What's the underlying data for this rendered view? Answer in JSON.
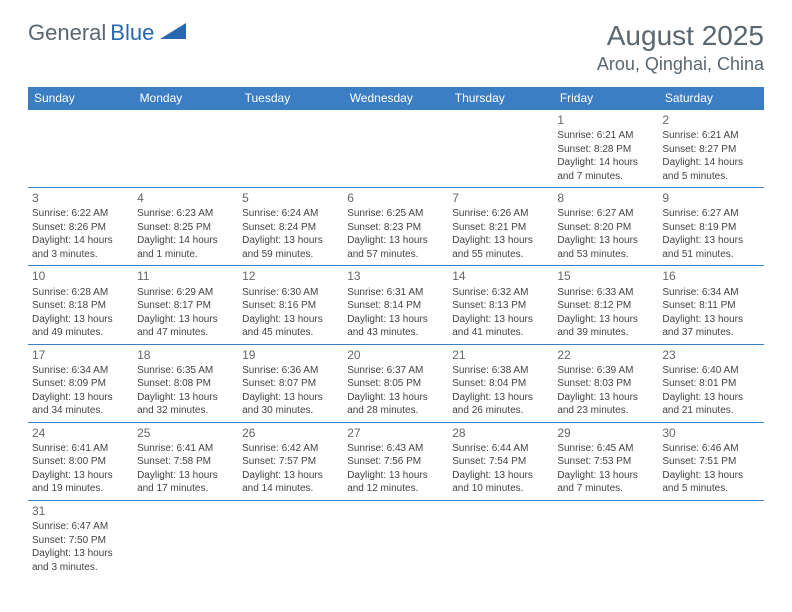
{
  "logo": {
    "text_dark": "General",
    "text_blue": "Blue"
  },
  "title": "August 2025",
  "location": "Arou, Qinghai, China",
  "colors": {
    "header_bg": "#3b7ec4",
    "header_text": "#ffffff",
    "border": "#3b7ec4",
    "text": "#444444",
    "title_text": "#5a6670",
    "logo_blue": "#2968b0"
  },
  "weekdays": [
    "Sunday",
    "Monday",
    "Tuesday",
    "Wednesday",
    "Thursday",
    "Friday",
    "Saturday"
  ],
  "cells": [
    [
      null,
      null,
      null,
      null,
      null,
      {
        "day": "1",
        "sunrise": "Sunrise: 6:21 AM",
        "sunset": "Sunset: 8:28 PM",
        "daylight": "Daylight: 14 hours and 7 minutes."
      },
      {
        "day": "2",
        "sunrise": "Sunrise: 6:21 AM",
        "sunset": "Sunset: 8:27 PM",
        "daylight": "Daylight: 14 hours and 5 minutes."
      }
    ],
    [
      {
        "day": "3",
        "sunrise": "Sunrise: 6:22 AM",
        "sunset": "Sunset: 8:26 PM",
        "daylight": "Daylight: 14 hours and 3 minutes."
      },
      {
        "day": "4",
        "sunrise": "Sunrise: 6:23 AM",
        "sunset": "Sunset: 8:25 PM",
        "daylight": "Daylight: 14 hours and 1 minute."
      },
      {
        "day": "5",
        "sunrise": "Sunrise: 6:24 AM",
        "sunset": "Sunset: 8:24 PM",
        "daylight": "Daylight: 13 hours and 59 minutes."
      },
      {
        "day": "6",
        "sunrise": "Sunrise: 6:25 AM",
        "sunset": "Sunset: 8:23 PM",
        "daylight": "Daylight: 13 hours and 57 minutes."
      },
      {
        "day": "7",
        "sunrise": "Sunrise: 6:26 AM",
        "sunset": "Sunset: 8:21 PM",
        "daylight": "Daylight: 13 hours and 55 minutes."
      },
      {
        "day": "8",
        "sunrise": "Sunrise: 6:27 AM",
        "sunset": "Sunset: 8:20 PM",
        "daylight": "Daylight: 13 hours and 53 minutes."
      },
      {
        "day": "9",
        "sunrise": "Sunrise: 6:27 AM",
        "sunset": "Sunset: 8:19 PM",
        "daylight": "Daylight: 13 hours and 51 minutes."
      }
    ],
    [
      {
        "day": "10",
        "sunrise": "Sunrise: 6:28 AM",
        "sunset": "Sunset: 8:18 PM",
        "daylight": "Daylight: 13 hours and 49 minutes."
      },
      {
        "day": "11",
        "sunrise": "Sunrise: 6:29 AM",
        "sunset": "Sunset: 8:17 PM",
        "daylight": "Daylight: 13 hours and 47 minutes."
      },
      {
        "day": "12",
        "sunrise": "Sunrise: 6:30 AM",
        "sunset": "Sunset: 8:16 PM",
        "daylight": "Daylight: 13 hours and 45 minutes."
      },
      {
        "day": "13",
        "sunrise": "Sunrise: 6:31 AM",
        "sunset": "Sunset: 8:14 PM",
        "daylight": "Daylight: 13 hours and 43 minutes."
      },
      {
        "day": "14",
        "sunrise": "Sunrise: 6:32 AM",
        "sunset": "Sunset: 8:13 PM",
        "daylight": "Daylight: 13 hours and 41 minutes."
      },
      {
        "day": "15",
        "sunrise": "Sunrise: 6:33 AM",
        "sunset": "Sunset: 8:12 PM",
        "daylight": "Daylight: 13 hours and 39 minutes."
      },
      {
        "day": "16",
        "sunrise": "Sunrise: 6:34 AM",
        "sunset": "Sunset: 8:11 PM",
        "daylight": "Daylight: 13 hours and 37 minutes."
      }
    ],
    [
      {
        "day": "17",
        "sunrise": "Sunrise: 6:34 AM",
        "sunset": "Sunset: 8:09 PM",
        "daylight": "Daylight: 13 hours and 34 minutes."
      },
      {
        "day": "18",
        "sunrise": "Sunrise: 6:35 AM",
        "sunset": "Sunset: 8:08 PM",
        "daylight": "Daylight: 13 hours and 32 minutes."
      },
      {
        "day": "19",
        "sunrise": "Sunrise: 6:36 AM",
        "sunset": "Sunset: 8:07 PM",
        "daylight": "Daylight: 13 hours and 30 minutes."
      },
      {
        "day": "20",
        "sunrise": "Sunrise: 6:37 AM",
        "sunset": "Sunset: 8:05 PM",
        "daylight": "Daylight: 13 hours and 28 minutes."
      },
      {
        "day": "21",
        "sunrise": "Sunrise: 6:38 AM",
        "sunset": "Sunset: 8:04 PM",
        "daylight": "Daylight: 13 hours and 26 minutes."
      },
      {
        "day": "22",
        "sunrise": "Sunrise: 6:39 AM",
        "sunset": "Sunset: 8:03 PM",
        "daylight": "Daylight: 13 hours and 23 minutes."
      },
      {
        "day": "23",
        "sunrise": "Sunrise: 6:40 AM",
        "sunset": "Sunset: 8:01 PM",
        "daylight": "Daylight: 13 hours and 21 minutes."
      }
    ],
    [
      {
        "day": "24",
        "sunrise": "Sunrise: 6:41 AM",
        "sunset": "Sunset: 8:00 PM",
        "daylight": "Daylight: 13 hours and 19 minutes."
      },
      {
        "day": "25",
        "sunrise": "Sunrise: 6:41 AM",
        "sunset": "Sunset: 7:58 PM",
        "daylight": "Daylight: 13 hours and 17 minutes."
      },
      {
        "day": "26",
        "sunrise": "Sunrise: 6:42 AM",
        "sunset": "Sunset: 7:57 PM",
        "daylight": "Daylight: 13 hours and 14 minutes."
      },
      {
        "day": "27",
        "sunrise": "Sunrise: 6:43 AM",
        "sunset": "Sunset: 7:56 PM",
        "daylight": "Daylight: 13 hours and 12 minutes."
      },
      {
        "day": "28",
        "sunrise": "Sunrise: 6:44 AM",
        "sunset": "Sunset: 7:54 PM",
        "daylight": "Daylight: 13 hours and 10 minutes."
      },
      {
        "day": "29",
        "sunrise": "Sunrise: 6:45 AM",
        "sunset": "Sunset: 7:53 PM",
        "daylight": "Daylight: 13 hours and 7 minutes."
      },
      {
        "day": "30",
        "sunrise": "Sunrise: 6:46 AM",
        "sunset": "Sunset: 7:51 PM",
        "daylight": "Daylight: 13 hours and 5 minutes."
      }
    ],
    [
      {
        "day": "31",
        "sunrise": "Sunrise: 6:47 AM",
        "sunset": "Sunset: 7:50 PM",
        "daylight": "Daylight: 13 hours and 3 minutes."
      },
      null,
      null,
      null,
      null,
      null,
      null
    ]
  ]
}
